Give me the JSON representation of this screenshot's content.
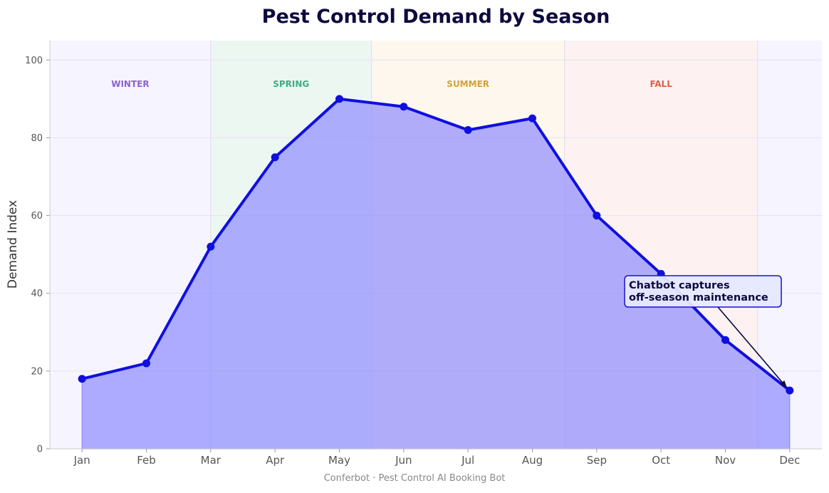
{
  "chart_data": {
    "type": "area",
    "title": "Pest Control Demand by Season",
    "xlabel": "",
    "ylabel": "Demand Index",
    "categories": [
      "Jan",
      "Feb",
      "Mar",
      "Apr",
      "May",
      "Jun",
      "Jul",
      "Aug",
      "Sep",
      "Oct",
      "Nov",
      "Dec"
    ],
    "series": [
      {
        "values": [
          18,
          22,
          52,
          75,
          90,
          88,
          82,
          85,
          60,
          45,
          28,
          15
        ],
        "line_color": "#0f0fe0",
        "fill_color": "#8f8cff"
      }
    ],
    "ylim": [
      0,
      105
    ],
    "yticks": [
      0,
      20,
      40,
      60,
      80,
      100
    ],
    "grid": true,
    "seasons": [
      {
        "label": "WINTER",
        "start": -0.5,
        "end": 2.0,
        "color": "#8e62d0",
        "band_color": "#f6f4ff"
      },
      {
        "label": "SPRING",
        "start": 2.0,
        "end": 4.5,
        "color": "#3fae84",
        "band_color": "#edf7f2"
      },
      {
        "label": "SUMMER",
        "start": 4.5,
        "end": 7.5,
        "color": "#d4a238",
        "band_color": "#fdf7ee"
      },
      {
        "label": "FALL",
        "start": 7.5,
        "end": 10.5,
        "color": "#da5f4c",
        "band_color": "#fdf2f1"
      },
      {
        "label": "",
        "start": 10.5,
        "end": 11.5,
        "color": "#8e62d0",
        "band_color": "#f6f4ff"
      }
    ],
    "annotation": {
      "lines": [
        "Chatbot captures",
        "off-season maintenance"
      ],
      "target_index": 11,
      "target_value": 15
    },
    "footer": "Conferbot · Pest Control AI Booking Bot"
  },
  "colors": {
    "title": "#0d0a3d",
    "tick_text": "#555555",
    "footer_text": "#888888",
    "annotation_border": "#1414cc",
    "annotation_fill": "#e6e8ff"
  }
}
